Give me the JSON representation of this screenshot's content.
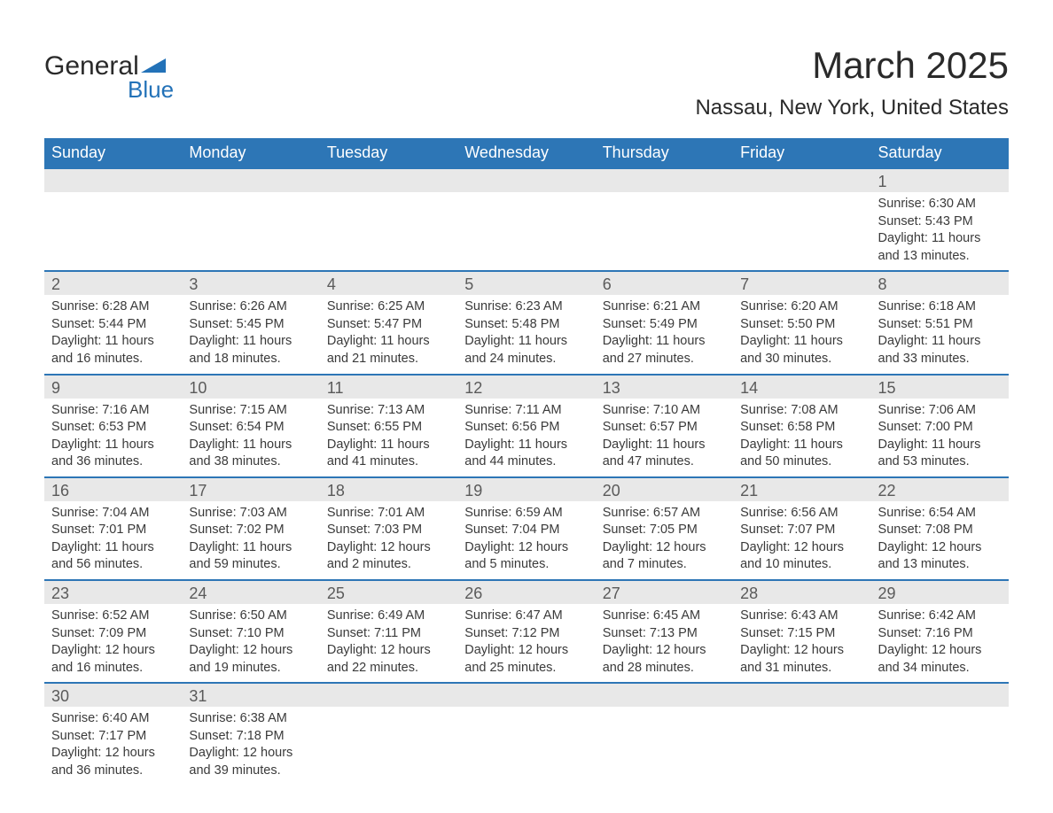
{
  "logo": {
    "general": "General",
    "blue": "Blue",
    "shape_color": "#2372b8"
  },
  "title": {
    "month": "March 2025",
    "location": "Nassau, New York, United States"
  },
  "colors": {
    "header_bg": "#2d76b6",
    "header_text": "#ffffff",
    "daynum_bg": "#e8e8e8",
    "daynum_text": "#5a5a5a",
    "body_text": "#3a3a3a",
    "page_bg": "#ffffff",
    "border": "#2d76b6"
  },
  "dayHeaders": [
    "Sunday",
    "Monday",
    "Tuesday",
    "Wednesday",
    "Thursday",
    "Friday",
    "Saturday"
  ],
  "weeks": [
    [
      null,
      null,
      null,
      null,
      null,
      null,
      {
        "n": "1",
        "sunrise": "Sunrise: 6:30 AM",
        "sunset": "Sunset: 5:43 PM",
        "dl1": "Daylight: 11 hours",
        "dl2": "and 13 minutes."
      }
    ],
    [
      {
        "n": "2",
        "sunrise": "Sunrise: 6:28 AM",
        "sunset": "Sunset: 5:44 PM",
        "dl1": "Daylight: 11 hours",
        "dl2": "and 16 minutes."
      },
      {
        "n": "3",
        "sunrise": "Sunrise: 6:26 AM",
        "sunset": "Sunset: 5:45 PM",
        "dl1": "Daylight: 11 hours",
        "dl2": "and 18 minutes."
      },
      {
        "n": "4",
        "sunrise": "Sunrise: 6:25 AM",
        "sunset": "Sunset: 5:47 PM",
        "dl1": "Daylight: 11 hours",
        "dl2": "and 21 minutes."
      },
      {
        "n": "5",
        "sunrise": "Sunrise: 6:23 AM",
        "sunset": "Sunset: 5:48 PM",
        "dl1": "Daylight: 11 hours",
        "dl2": "and 24 minutes."
      },
      {
        "n": "6",
        "sunrise": "Sunrise: 6:21 AM",
        "sunset": "Sunset: 5:49 PM",
        "dl1": "Daylight: 11 hours",
        "dl2": "and 27 minutes."
      },
      {
        "n": "7",
        "sunrise": "Sunrise: 6:20 AM",
        "sunset": "Sunset: 5:50 PM",
        "dl1": "Daylight: 11 hours",
        "dl2": "and 30 minutes."
      },
      {
        "n": "8",
        "sunrise": "Sunrise: 6:18 AM",
        "sunset": "Sunset: 5:51 PM",
        "dl1": "Daylight: 11 hours",
        "dl2": "and 33 minutes."
      }
    ],
    [
      {
        "n": "9",
        "sunrise": "Sunrise: 7:16 AM",
        "sunset": "Sunset: 6:53 PM",
        "dl1": "Daylight: 11 hours",
        "dl2": "and 36 minutes."
      },
      {
        "n": "10",
        "sunrise": "Sunrise: 7:15 AM",
        "sunset": "Sunset: 6:54 PM",
        "dl1": "Daylight: 11 hours",
        "dl2": "and 38 minutes."
      },
      {
        "n": "11",
        "sunrise": "Sunrise: 7:13 AM",
        "sunset": "Sunset: 6:55 PM",
        "dl1": "Daylight: 11 hours",
        "dl2": "and 41 minutes."
      },
      {
        "n": "12",
        "sunrise": "Sunrise: 7:11 AM",
        "sunset": "Sunset: 6:56 PM",
        "dl1": "Daylight: 11 hours",
        "dl2": "and 44 minutes."
      },
      {
        "n": "13",
        "sunrise": "Sunrise: 7:10 AM",
        "sunset": "Sunset: 6:57 PM",
        "dl1": "Daylight: 11 hours",
        "dl2": "and 47 minutes."
      },
      {
        "n": "14",
        "sunrise": "Sunrise: 7:08 AM",
        "sunset": "Sunset: 6:58 PM",
        "dl1": "Daylight: 11 hours",
        "dl2": "and 50 minutes."
      },
      {
        "n": "15",
        "sunrise": "Sunrise: 7:06 AM",
        "sunset": "Sunset: 7:00 PM",
        "dl1": "Daylight: 11 hours",
        "dl2": "and 53 minutes."
      }
    ],
    [
      {
        "n": "16",
        "sunrise": "Sunrise: 7:04 AM",
        "sunset": "Sunset: 7:01 PM",
        "dl1": "Daylight: 11 hours",
        "dl2": "and 56 minutes."
      },
      {
        "n": "17",
        "sunrise": "Sunrise: 7:03 AM",
        "sunset": "Sunset: 7:02 PM",
        "dl1": "Daylight: 11 hours",
        "dl2": "and 59 minutes."
      },
      {
        "n": "18",
        "sunrise": "Sunrise: 7:01 AM",
        "sunset": "Sunset: 7:03 PM",
        "dl1": "Daylight: 12 hours",
        "dl2": "and 2 minutes."
      },
      {
        "n": "19",
        "sunrise": "Sunrise: 6:59 AM",
        "sunset": "Sunset: 7:04 PM",
        "dl1": "Daylight: 12 hours",
        "dl2": "and 5 minutes."
      },
      {
        "n": "20",
        "sunrise": "Sunrise: 6:57 AM",
        "sunset": "Sunset: 7:05 PM",
        "dl1": "Daylight: 12 hours",
        "dl2": "and 7 minutes."
      },
      {
        "n": "21",
        "sunrise": "Sunrise: 6:56 AM",
        "sunset": "Sunset: 7:07 PM",
        "dl1": "Daylight: 12 hours",
        "dl2": "and 10 minutes."
      },
      {
        "n": "22",
        "sunrise": "Sunrise: 6:54 AM",
        "sunset": "Sunset: 7:08 PM",
        "dl1": "Daylight: 12 hours",
        "dl2": "and 13 minutes."
      }
    ],
    [
      {
        "n": "23",
        "sunrise": "Sunrise: 6:52 AM",
        "sunset": "Sunset: 7:09 PM",
        "dl1": "Daylight: 12 hours",
        "dl2": "and 16 minutes."
      },
      {
        "n": "24",
        "sunrise": "Sunrise: 6:50 AM",
        "sunset": "Sunset: 7:10 PM",
        "dl1": "Daylight: 12 hours",
        "dl2": "and 19 minutes."
      },
      {
        "n": "25",
        "sunrise": "Sunrise: 6:49 AM",
        "sunset": "Sunset: 7:11 PM",
        "dl1": "Daylight: 12 hours",
        "dl2": "and 22 minutes."
      },
      {
        "n": "26",
        "sunrise": "Sunrise: 6:47 AM",
        "sunset": "Sunset: 7:12 PM",
        "dl1": "Daylight: 12 hours",
        "dl2": "and 25 minutes."
      },
      {
        "n": "27",
        "sunrise": "Sunrise: 6:45 AM",
        "sunset": "Sunset: 7:13 PM",
        "dl1": "Daylight: 12 hours",
        "dl2": "and 28 minutes."
      },
      {
        "n": "28",
        "sunrise": "Sunrise: 6:43 AM",
        "sunset": "Sunset: 7:15 PM",
        "dl1": "Daylight: 12 hours",
        "dl2": "and 31 minutes."
      },
      {
        "n": "29",
        "sunrise": "Sunrise: 6:42 AM",
        "sunset": "Sunset: 7:16 PM",
        "dl1": "Daylight: 12 hours",
        "dl2": "and 34 minutes."
      }
    ],
    [
      {
        "n": "30",
        "sunrise": "Sunrise: 6:40 AM",
        "sunset": "Sunset: 7:17 PM",
        "dl1": "Daylight: 12 hours",
        "dl2": "and 36 minutes."
      },
      {
        "n": "31",
        "sunrise": "Sunrise: 6:38 AM",
        "sunset": "Sunset: 7:18 PM",
        "dl1": "Daylight: 12 hours",
        "dl2": "and 39 minutes."
      },
      null,
      null,
      null,
      null,
      null
    ]
  ]
}
